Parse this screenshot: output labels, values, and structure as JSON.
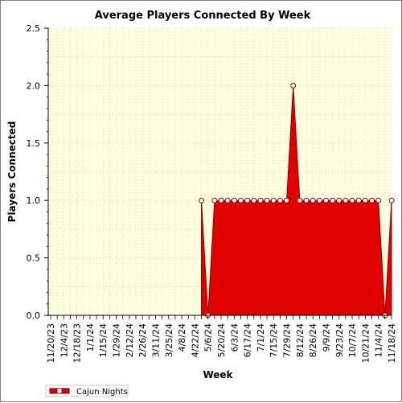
{
  "chart_data": {
    "type": "area",
    "title": "Average Players Connected By Week",
    "xlabel": "Week",
    "ylabel": "Players Connected",
    "ylim": [
      0,
      2.5
    ],
    "yticks": [
      "0.0",
      "0.5",
      "1.0",
      "1.5",
      "2.0",
      "2.5"
    ],
    "grid": true,
    "legend_position": "bottom-left",
    "x_tick_labels": [
      "11/20/23",
      "12/4/23",
      "12/18/23",
      "1/1/24",
      "1/15/24",
      "1/29/24",
      "2/12/24",
      "2/26/24",
      "3/11/24",
      "3/25/24",
      "4/8/24",
      "4/22/24",
      "5/6/24",
      "5/20/24",
      "6/3/24",
      "6/17/24",
      "7/1/24",
      "7/15/24",
      "7/29/24",
      "8/12/24",
      "8/26/24",
      "9/9/24",
      "9/23/24",
      "10/7/24",
      "10/21/24",
      "11/4/24",
      "11/18/24"
    ],
    "x": [
      "11/20/23",
      "11/27/23",
      "12/4/23",
      "12/11/23",
      "12/18/23",
      "12/25/23",
      "1/1/24",
      "1/8/24",
      "1/15/24",
      "1/22/24",
      "1/29/24",
      "2/5/24",
      "2/12/24",
      "2/19/24",
      "2/26/24",
      "3/4/24",
      "3/11/24",
      "3/18/24",
      "3/25/24",
      "4/1/24",
      "4/8/24",
      "4/15/24",
      "4/22/24",
      "4/29/24",
      "5/6/24",
      "5/13/24",
      "5/20/24",
      "5/27/24",
      "6/3/24",
      "6/10/24",
      "6/17/24",
      "6/24/24",
      "7/1/24",
      "7/8/24",
      "7/15/24",
      "7/22/24",
      "7/29/24",
      "8/5/24",
      "8/12/24",
      "8/19/24",
      "8/26/24",
      "9/2/24",
      "9/9/24",
      "9/16/24",
      "9/23/24",
      "9/30/24",
      "10/7/24",
      "10/14/24",
      "10/21/24",
      "10/28/24",
      "11/4/24",
      "11/11/24",
      "11/18/24"
    ],
    "series": [
      {
        "name": "Cajun Nights",
        "color": "#e00000",
        "values": [
          null,
          null,
          null,
          null,
          null,
          null,
          null,
          null,
          null,
          null,
          null,
          null,
          null,
          null,
          null,
          null,
          null,
          null,
          null,
          null,
          null,
          null,
          null,
          null,
          null,
          null,
          null,
          null,
          null,
          null,
          null,
          null,
          null,
          null,
          null,
          null,
          null,
          null,
          null,
          null,
          null,
          null,
          null,
          null,
          null,
          null,
          null,
          null,
          null,
          null,
          null,
          null,
          null
        ],
        "points": [
          {
            "x": "4/29/24",
            "y": 1.0
          },
          {
            "x": "5/6/24",
            "y": 0.0
          },
          {
            "x": "5/13/24",
            "y": 1.0
          },
          {
            "x": "5/20/24",
            "y": 1.0
          },
          {
            "x": "5/27/24",
            "y": 1.0
          },
          {
            "x": "6/3/24",
            "y": 1.0
          },
          {
            "x": "6/10/24",
            "y": 1.0
          },
          {
            "x": "6/17/24",
            "y": 1.0
          },
          {
            "x": "6/24/24",
            "y": 1.0
          },
          {
            "x": "7/1/24",
            "y": 1.0
          },
          {
            "x": "7/8/24",
            "y": 1.0
          },
          {
            "x": "7/15/24",
            "y": 1.0
          },
          {
            "x": "7/22/24",
            "y": 1.0
          },
          {
            "x": "7/29/24",
            "y": 1.0
          },
          {
            "x": "8/5/24",
            "y": 2.0
          },
          {
            "x": "8/12/24",
            "y": 1.0
          },
          {
            "x": "8/19/24",
            "y": 1.0
          },
          {
            "x": "8/26/24",
            "y": 1.0
          },
          {
            "x": "9/2/24",
            "y": 1.0
          },
          {
            "x": "9/9/24",
            "y": 1.0
          },
          {
            "x": "9/16/24",
            "y": 1.0
          },
          {
            "x": "9/23/24",
            "y": 1.0
          },
          {
            "x": "9/30/24",
            "y": 1.0
          },
          {
            "x": "10/7/24",
            "y": 1.0
          },
          {
            "x": "10/14/24",
            "y": 1.0
          },
          {
            "x": "10/21/24",
            "y": 1.0
          },
          {
            "x": "10/28/24",
            "y": 1.0
          },
          {
            "x": "11/4/24",
            "y": 1.0
          },
          {
            "x": "11/11/24",
            "y": 0.0
          },
          {
            "x": "11/18/24",
            "y": 1.0
          }
        ]
      }
    ]
  },
  "colors": {
    "plot_background": "#ffffe0",
    "series_fill": "#e00000",
    "grid": "#c8c8b4"
  }
}
